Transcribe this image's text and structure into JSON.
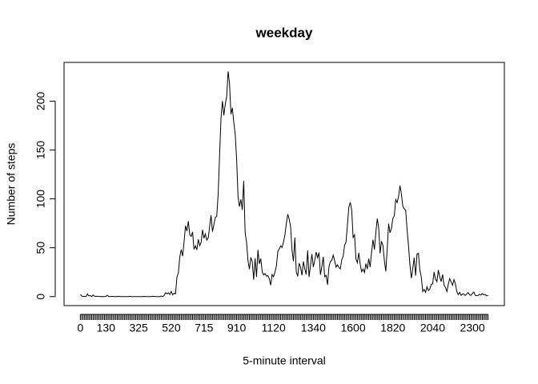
{
  "chart_data": {
    "type": "line",
    "title": "weekday",
    "x_label": "5-minute interval",
    "y_label": "Number of steps",
    "color": "#000000",
    "ylim": [
      -9.2,
      239.6
    ],
    "yticks": [
      0,
      50,
      100,
      150,
      200
    ],
    "categories": [
      "0",
      null,
      null,
      null,
      null,
      null,
      null,
      null,
      null,
      null,
      null,
      null,
      null,
      null,
      null,
      null,
      null,
      null,
      "130",
      null,
      null,
      null,
      null,
      null,
      null,
      null,
      null,
      null,
      null,
      null,
      null,
      null,
      null,
      null,
      null,
      null,
      null,
      null,
      null,
      null,
      null,
      "325",
      null,
      null,
      null,
      null,
      null,
      null,
      null,
      null,
      null,
      null,
      null,
      null,
      null,
      null,
      null,
      null,
      null,
      null,
      null,
      null,
      null,
      null,
      "520",
      null,
      null,
      null,
      null,
      null,
      null,
      null,
      null,
      null,
      null,
      null,
      null,
      null,
      null,
      null,
      null,
      null,
      null,
      null,
      null,
      null,
      null,
      "715",
      null,
      null,
      null,
      null,
      null,
      null,
      null,
      null,
      null,
      null,
      null,
      null,
      null,
      null,
      null,
      null,
      null,
      null,
      null,
      null,
      null,
      null,
      "910",
      null,
      null,
      null,
      null,
      null,
      null,
      null,
      null,
      null,
      null,
      null,
      null,
      null,
      null,
      null,
      null,
      null,
      null,
      null,
      null,
      null,
      null,
      null,
      null,
      null,
      "1120",
      null,
      null,
      null,
      null,
      null,
      null,
      null,
      null,
      null,
      null,
      null,
      null,
      null,
      null,
      null,
      null,
      null,
      null,
      null,
      null,
      null,
      null,
      null,
      null,
      null,
      null,
      null,
      "1340",
      null,
      null,
      null,
      null,
      null,
      null,
      null,
      null,
      null,
      null,
      null,
      null,
      null,
      null,
      null,
      null,
      null,
      null,
      null,
      null,
      null,
      null,
      null,
      null,
      null,
      null,
      null,
      "1600",
      null,
      null,
      null,
      null,
      null,
      null,
      null,
      null,
      null,
      null,
      null,
      null,
      null,
      null,
      null,
      null,
      null,
      null,
      null,
      null,
      null,
      null,
      null,
      null,
      null,
      null,
      null,
      "1820",
      null,
      null,
      null,
      null,
      null,
      null,
      null,
      null,
      null,
      null,
      null,
      null,
      null,
      null,
      null,
      null,
      null,
      null,
      null,
      null,
      null,
      null,
      null,
      null,
      null,
      null,
      null,
      "2040",
      null,
      null,
      null,
      null,
      null,
      null,
      null,
      null,
      null,
      null,
      null,
      null,
      null,
      null,
      null,
      null,
      null,
      null,
      null,
      null,
      null,
      null,
      null,
      null,
      null,
      null,
      null,
      "2300",
      null,
      null,
      null,
      null,
      null,
      null,
      null,
      null,
      null,
      null,
      null
    ],
    "values": [
      2.3,
      0.5,
      0.2,
      0.2,
      0.1,
      2.6,
      0.7,
      1.1,
      0,
      1.7,
      0.4,
      0.1,
      0.4,
      0.1,
      0,
      0.1,
      0,
      0,
      0.3,
      1.3,
      0,
      0,
      0.2,
      0.2,
      0,
      0,
      0,
      0.4,
      0,
      0,
      0,
      0,
      0,
      0,
      0,
      0.3,
      0,
      0,
      0,
      0,
      0,
      0,
      0,
      0,
      0,
      0.2,
      0,
      0,
      0,
      0,
      0,
      0.4,
      0.2,
      0,
      0,
      0,
      0,
      0.6,
      0,
      1.2,
      4.1,
      2.8,
      3.9,
      2.1,
      5.4,
      1.8,
      3.5,
      2.9,
      20.3,
      24.1,
      40.7,
      48.2,
      41.3,
      55.9,
      72.4,
      67.1,
      77.2,
      63.6,
      61.5,
      66.2,
      48.3,
      51.9,
      47.8,
      58.6,
      52.1,
      55.4,
      68.3,
      59.7,
      64.2,
      57.8,
      60.1,
      71.5,
      83.2,
      66.4,
      73.8,
      80.9,
      82.1,
      104.5,
      144.2,
      182.3,
      200.1,
      185.4,
      196.7,
      204.5,
      230.4,
      218.2,
      186.6,
      193.1,
      178.4,
      166.2,
      140.5,
      102.3,
      92.1,
      99.5,
      88.7,
      118.4,
      65.2,
      55.6,
      36.8,
      28.1,
      40.2,
      35.6,
      17.3,
      39.4,
      20.1,
      47.8,
      33.5,
      38.9,
      25.4,
      22.1,
      23.6,
      20.9,
      21.5,
      18.4,
      11.7,
      22.6,
      20.3,
      25.1,
      31.4,
      46.2,
      48.7,
      51.9,
      50.3,
      55.8,
      63.1,
      74.8,
      84.3,
      79.2,
      71.6,
      47.5,
      36.2,
      60.4,
      25.3,
      20.7,
      34.1,
      30.2,
      21.8,
      35.9,
      28.4,
      22.6,
      47.3,
      20.1,
      31.8,
      43.5,
      30.2,
      37.1,
      45.6,
      39.8,
      45.1,
      22.4,
      30.5,
      40.7,
      20.3,
      21.8,
      12.1,
      30.5,
      35.9,
      37.2,
      42.4,
      36.8,
      30.1,
      32.5,
      29.8,
      28.4,
      37.6,
      41.3,
      52.4,
      55.8,
      73.2,
      91.5,
      96.4,
      89.1,
      60.5,
      63.2,
      38.4,
      34.6,
      44.8,
      33.1,
      25.4,
      28.3,
      24.7,
      33.8,
      28.1,
      38.9,
      30.2,
      45.6,
      58.3,
      48.1,
      65.4,
      79.8,
      70.3,
      44.2,
      56.7,
      52.4,
      37.1,
      25.8,
      48.5,
      74.7,
      65.3,
      69.8,
      80.1,
      82.7,
      99.4,
      96.2,
      102.5,
      113.6,
      105.1,
      92.4,
      89.7,
      88.6,
      68.5,
      52.1,
      32.4,
      18.9,
      28.7,
      39.8,
      21.4,
      43.6,
      44.2,
      26.8,
      20.3,
      5.1,
      7.4,
      4.3,
      10.1,
      6.2,
      7.8,
      12.5,
      13.2,
      25.1,
      17.8,
      15.3,
      27.2,
      20.1,
      15.4,
      22.6,
      11.8,
      9.4,
      5.2,
      12.7,
      18.3,
      15.1,
      11.6,
      17.4,
      13.2,
      5.1,
      2.1,
      4.3,
      1.3,
      2.8,
      2.4,
      1.2,
      2.8,
      4.1,
      1.8,
      1.3,
      3.2,
      4.7,
      1.3,
      0.9,
      1.2,
      2.5,
      1.6,
      3.1,
      1.8,
      2.2,
      0.8,
      1.1
    ]
  }
}
